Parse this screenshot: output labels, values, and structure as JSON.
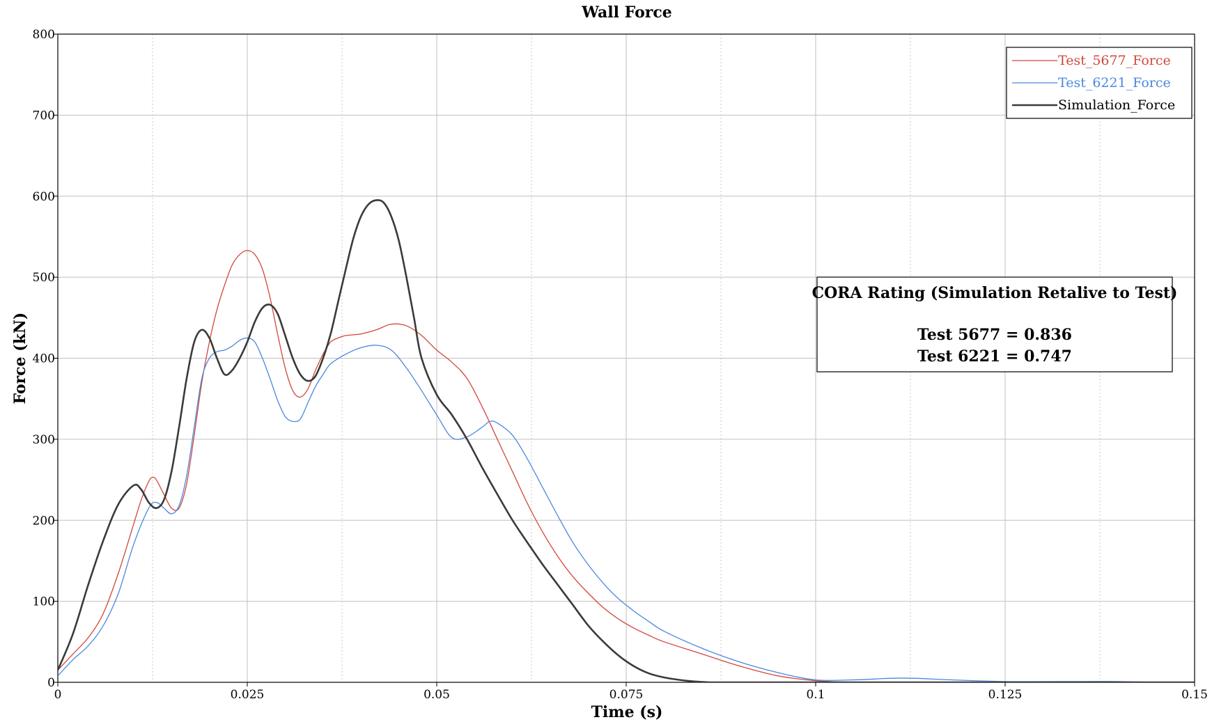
{
  "chart_data": {
    "type": "line",
    "title": "Wall Force",
    "xlabel": "Time (s)",
    "ylabel": "Force (kN)",
    "xlim": [
      0,
      0.15
    ],
    "ylim": [
      0,
      800
    ],
    "x_ticks": [
      0,
      0.025,
      0.05,
      0.075,
      0.1,
      0.125,
      0.15
    ],
    "x_tick_labels": [
      "0",
      "0.025",
      "0.05",
      "0.075",
      "0.1",
      "0.125",
      "0.15"
    ],
    "y_ticks": [
      0,
      100,
      200,
      300,
      400,
      500,
      600,
      700,
      800
    ],
    "y_tick_labels": [
      "0",
      "100",
      "200",
      "300",
      "400",
      "500",
      "600",
      "700",
      "800"
    ],
    "x_minor_ticks": [
      0.0125,
      0.0375,
      0.0625,
      0.0875,
      0.1125,
      0.1375
    ],
    "grid": true,
    "legend_position": "top-right",
    "series": [
      {
        "name": "Test_5677_Force",
        "color": "#d0473c",
        "width": 1.3,
        "x": [
          0,
          0.002,
          0.004,
          0.006,
          0.008,
          0.01,
          0.011,
          0.012,
          0.0125,
          0.013,
          0.014,
          0.015,
          0.016,
          0.017,
          0.018,
          0.019,
          0.02,
          0.021,
          0.022,
          0.023,
          0.024,
          0.025,
          0.026,
          0.027,
          0.028,
          0.029,
          0.03,
          0.031,
          0.032,
          0.033,
          0.034,
          0.035,
          0.036,
          0.037,
          0.038,
          0.04,
          0.042,
          0.044,
          0.046,
          0.048,
          0.05,
          0.052,
          0.054,
          0.056,
          0.058,
          0.06,
          0.062,
          0.064,
          0.066,
          0.068,
          0.07,
          0.072,
          0.074,
          0.076,
          0.078,
          0.08,
          0.085,
          0.09,
          0.095,
          0.1,
          0.105,
          0.11,
          0.12,
          0.13,
          0.15
        ],
        "y": [
          15,
          35,
          55,
          85,
          135,
          195,
          225,
          248,
          253,
          250,
          232,
          215,
          215,
          245,
          305,
          370,
          420,
          460,
          490,
          515,
          528,
          533,
          528,
          510,
          475,
          430,
          388,
          360,
          352,
          362,
          385,
          405,
          420,
          425,
          428,
          430,
          435,
          442,
          440,
          428,
          410,
          395,
          375,
          340,
          300,
          260,
          220,
          185,
          155,
          130,
          110,
          92,
          78,
          67,
          58,
          50,
          35,
          20,
          8,
          2,
          0,
          0,
          0,
          0,
          0
        ]
      },
      {
        "name": "Test_6221_Force",
        "color": "#4a87e0",
        "width": 1.3,
        "x": [
          0,
          0.002,
          0.004,
          0.006,
          0.008,
          0.01,
          0.012,
          0.013,
          0.014,
          0.015,
          0.016,
          0.017,
          0.018,
          0.019,
          0.02,
          0.021,
          0.022,
          0.023,
          0.024,
          0.025,
          0.026,
          0.027,
          0.028,
          0.029,
          0.03,
          0.031,
          0.032,
          0.033,
          0.034,
          0.035,
          0.036,
          0.038,
          0.04,
          0.042,
          0.044,
          0.046,
          0.048,
          0.05,
          0.052,
          0.054,
          0.056,
          0.057,
          0.058,
          0.06,
          0.062,
          0.064,
          0.066,
          0.068,
          0.07,
          0.072,
          0.074,
          0.076,
          0.078,
          0.08,
          0.085,
          0.09,
          0.095,
          0.1,
          0.105,
          0.11,
          0.113,
          0.118,
          0.125,
          0.135,
          0.14,
          0.145,
          0.15
        ],
        "y": [
          8,
          28,
          45,
          70,
          110,
          170,
          215,
          222,
          215,
          208,
          218,
          255,
          315,
          375,
          400,
          408,
          410,
          415,
          422,
          425,
          420,
          400,
          375,
          348,
          328,
          322,
          325,
          345,
          365,
          380,
          393,
          405,
          413,
          416,
          410,
          388,
          360,
          330,
          302,
          303,
          315,
          322,
          320,
          305,
          275,
          240,
          205,
          172,
          145,
          122,
          103,
          88,
          75,
          63,
          42,
          25,
          12,
          3,
          3,
          5,
          5,
          3,
          1,
          1,
          1,
          0,
          0
        ]
      },
      {
        "name": "Simulation_Force",
        "color": "#3a3a3a",
        "width": 2.6,
        "x": [
          0,
          0.002,
          0.004,
          0.006,
          0.008,
          0.01,
          0.011,
          0.012,
          0.013,
          0.014,
          0.015,
          0.016,
          0.017,
          0.018,
          0.019,
          0.02,
          0.021,
          0.022,
          0.023,
          0.024,
          0.025,
          0.026,
          0.027,
          0.028,
          0.029,
          0.03,
          0.031,
          0.032,
          0.033,
          0.034,
          0.035,
          0.036,
          0.037,
          0.038,
          0.039,
          0.04,
          0.041,
          0.042,
          0.043,
          0.044,
          0.045,
          0.046,
          0.047,
          0.048,
          0.05,
          0.052,
          0.054,
          0.056,
          0.058,
          0.06,
          0.062,
          0.064,
          0.066,
          0.068,
          0.07,
          0.072,
          0.074,
          0.076,
          0.078,
          0.08,
          0.082,
          0.084,
          0.086,
          0.088,
          0.09,
          0.1,
          0.15
        ],
        "y": [
          15,
          60,
          120,
          175,
          220,
          243,
          238,
          222,
          215,
          225,
          260,
          315,
          375,
          420,
          435,
          425,
          400,
          380,
          385,
          400,
          420,
          445,
          462,
          466,
          455,
          428,
          400,
          380,
          372,
          378,
          400,
          430,
          470,
          510,
          548,
          575,
          590,
          595,
          592,
          575,
          545,
          500,
          450,
          400,
          355,
          330,
          300,
          265,
          232,
          200,
          172,
          145,
          120,
          95,
          70,
          50,
          33,
          20,
          11,
          6,
          3,
          1,
          0,
          0,
          0,
          0,
          0
        ]
      }
    ],
    "annotation": {
      "heading": "CORA Rating (Simulation Retalive to Test)",
      "lines": [
        "Test 5677 = 0.836",
        "Test 6221 = 0.747"
      ]
    }
  }
}
